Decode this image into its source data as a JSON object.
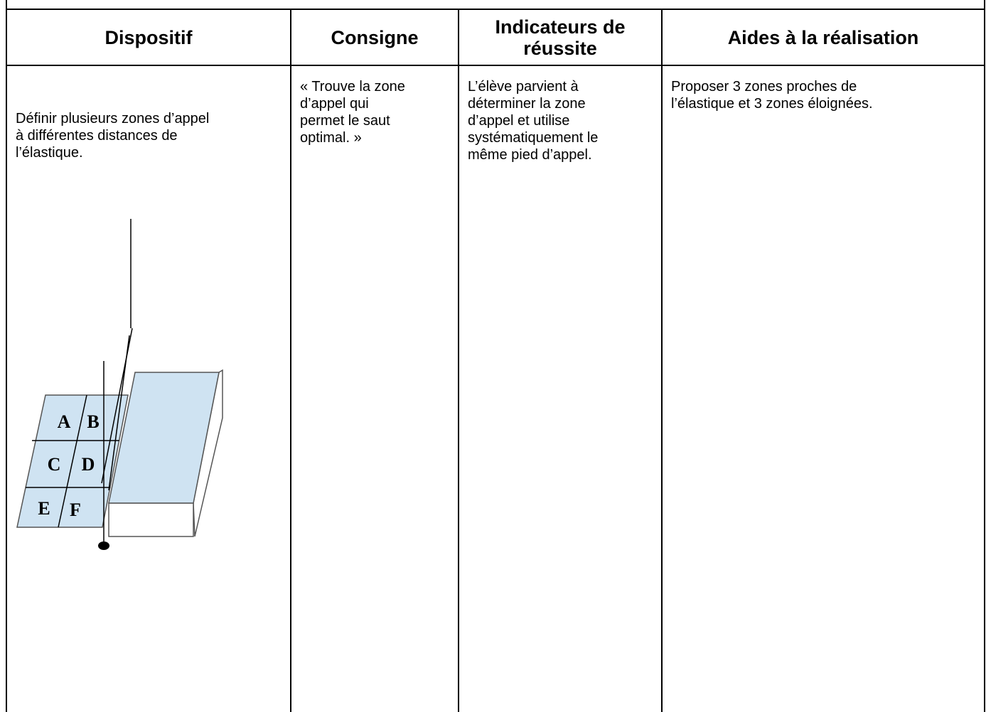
{
  "table": {
    "headers": [
      [
        "Dispositif"
      ],
      [
        "Consigne"
      ],
      [
        "Indicateurs de",
        "réussite"
      ],
      [
        "Aides à la réalisation"
      ]
    ],
    "rows": [
      [
        [
          "Définir plusieurs zones d’appel",
          "à différentes distances de",
          "l’élastique."
        ],
        [
          "« Trouve la zone",
          "d’appel qui",
          "permet le saut",
          "optimal. »"
        ],
        [
          "L’élève parvient à",
          "déterminer la zone",
          "d’appel et utilise",
          "systématiquement le",
          "même pied d’appel."
        ],
        [
          "Proposer 3 zones proches de",
          "l’élastique et 3 zones éloignées."
        ]
      ]
    ]
  },
  "diagram": {
    "labels": [
      "A",
      "B",
      "C",
      "D",
      "E",
      "F"
    ]
  }
}
